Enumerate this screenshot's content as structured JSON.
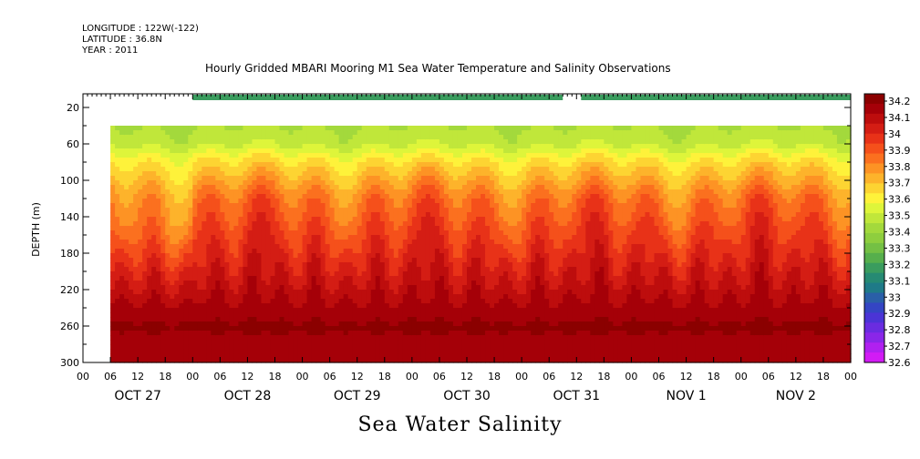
{
  "header": {
    "longitude": "LONGITUDE : 122W(-122)",
    "latitude": "LATITUDE : 36.8N",
    "year": "YEAR : 2011",
    "title": "Hourly Gridded MBARI Mooring M1 Sea Water Temperature and Salinity Observations"
  },
  "footer": {
    "title": "Sea Water Salinity"
  },
  "chart_data": {
    "type": "heatmap",
    "title": "Hourly Gridded MBARI Mooring M1 Sea Water Temperature and Salinity Observations",
    "ylabel": "DEPTH (m)",
    "xlabel": "",
    "ylim": [
      300,
      5
    ],
    "yticks": [
      20,
      60,
      100,
      140,
      180,
      220,
      260,
      300
    ],
    "xlim": [
      0,
      168
    ],
    "hour_tick_labels": [
      "00",
      "06",
      "12",
      "18",
      "00",
      "06",
      "12",
      "18",
      "00",
      "06",
      "12",
      "18",
      "00",
      "06",
      "12",
      "18",
      "00",
      "06",
      "12",
      "18",
      "00",
      "06",
      "12",
      "18",
      "00",
      "06",
      "12",
      "18",
      "00"
    ],
    "day_labels": [
      "OCT 27",
      "OCT 28",
      "OCT 29",
      "OCT 30",
      "OCT 31",
      "NOV  1",
      "NOV  2"
    ],
    "colorbar": {
      "levels": [
        "34.2",
        "34.1",
        "34",
        "33.9",
        "33.8",
        "33.7",
        "33.6",
        "33.5",
        "33.4",
        "33.3",
        "33.2",
        "33.1",
        "33",
        "32.9",
        "32.8",
        "32.7",
        "32.6"
      ],
      "colors": [
        "#8b0000",
        "#a50008",
        "#bd0d0d",
        "#d41d14",
        "#e83218",
        "#f5501b",
        "#fb701f",
        "#fd9324",
        "#fdb32b",
        "#fdd432",
        "#fef23a",
        "#def53a",
        "#c0e73a",
        "#a3d93c",
        "#8ece3e",
        "#74c044",
        "#56af4c",
        "#3a9c5e",
        "#268a73",
        "#1f7a88",
        "#2a5fa8",
        "#3445c4",
        "#4b34d6",
        "#6a2ce0",
        "#8a26e8",
        "#b020f0",
        "#d21bf5"
      ]
    },
    "depth_salinity_profile": [
      {
        "depth": 10,
        "salinity": 33.05
      },
      {
        "depth": 40,
        "salinity": 33.45
      },
      {
        "depth": 60,
        "salinity": 33.5
      },
      {
        "depth": 80,
        "salinity": 33.65
      },
      {
        "depth": 100,
        "salinity": 33.75
      },
      {
        "depth": 120,
        "salinity": 33.85
      },
      {
        "depth": 140,
        "salinity": 33.9
      },
      {
        "depth": 160,
        "salinity": 33.95
      },
      {
        "depth": 180,
        "salinity": 34.0
      },
      {
        "depth": 200,
        "salinity": 34.05
      },
      {
        "depth": 220,
        "salinity": 34.1
      },
      {
        "depth": 240,
        "salinity": 34.15
      },
      {
        "depth": 260,
        "salinity": 34.2
      },
      {
        "depth": 280,
        "salinity": 34.17
      },
      {
        "depth": 300,
        "salinity": 34.15
      }
    ],
    "data_start_hour": 6,
    "surface_band": {
      "depth_top": 6,
      "depth_bottom": 12,
      "segments": [
        [
          24,
          105
        ],
        [
          109,
          168
        ]
      ]
    },
    "subsurface_data_top_depth": 40
  }
}
